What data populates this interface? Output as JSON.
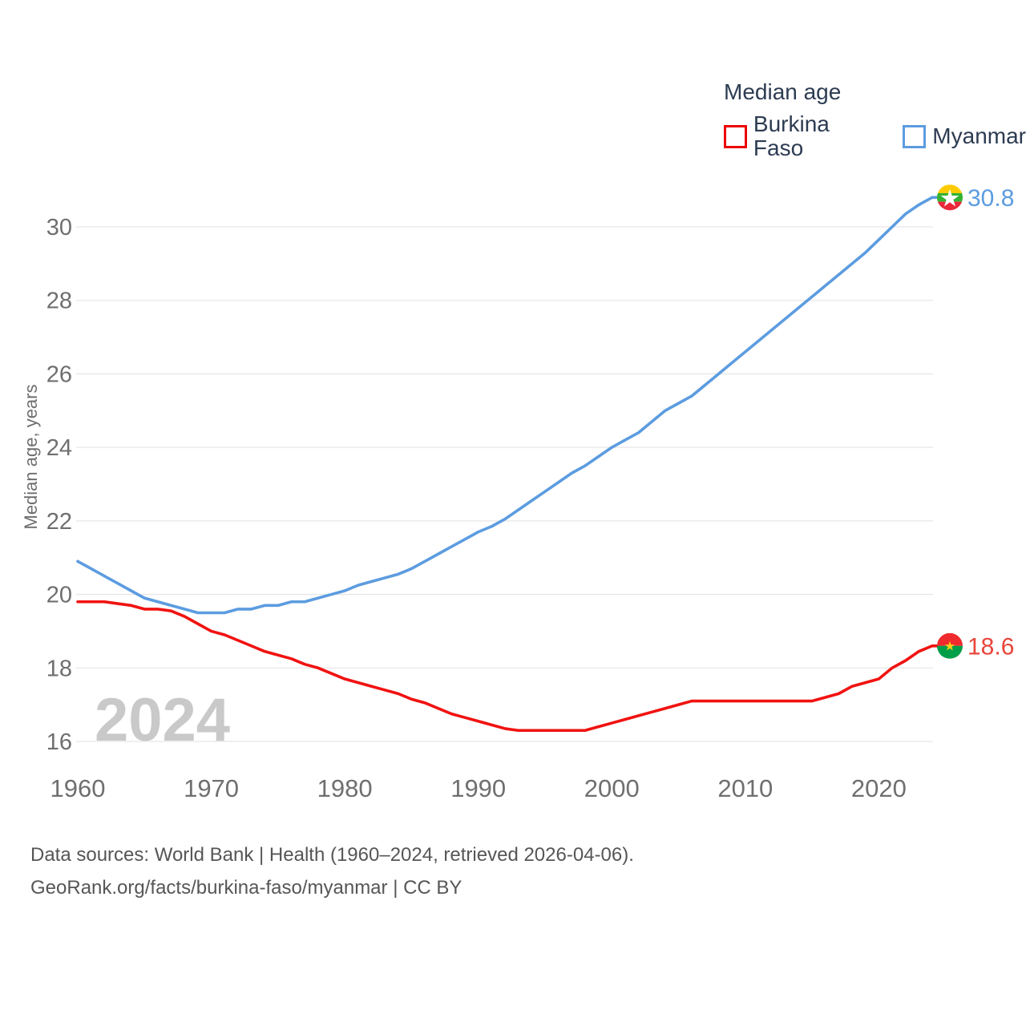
{
  "legend": {
    "title": "Median age",
    "items": [
      {
        "id": "burkina-faso",
        "label": "Burkina Faso",
        "color": "#ee0000"
      },
      {
        "id": "myanmar",
        "label": "Myanmar",
        "color": "#5c9ce0"
      }
    ]
  },
  "chart_data": {
    "type": "line",
    "title": "Median age",
    "xlabel": "",
    "ylabel": "Median age, years",
    "xlim": [
      1960,
      2024
    ],
    "ylim": [
      16,
      30
    ],
    "x_ticks": [
      1960,
      1970,
      1980,
      1990,
      2000,
      2010,
      2020
    ],
    "y_ticks": [
      16,
      18,
      20,
      22,
      24,
      26,
      28,
      30
    ],
    "grid": true,
    "legend_position": "top-right",
    "watermark": "2024",
    "x": [
      1960,
      1961,
      1962,
      1963,
      1964,
      1965,
      1966,
      1967,
      1968,
      1969,
      1970,
      1971,
      1972,
      1973,
      1974,
      1975,
      1976,
      1977,
      1978,
      1979,
      1980,
      1981,
      1982,
      1983,
      1984,
      1985,
      1986,
      1987,
      1988,
      1989,
      1990,
      1991,
      1992,
      1993,
      1994,
      1995,
      1996,
      1997,
      1998,
      1999,
      2000,
      2001,
      2002,
      2003,
      2004,
      2005,
      2006,
      2007,
      2008,
      2009,
      2010,
      2011,
      2012,
      2013,
      2014,
      2015,
      2016,
      2017,
      2018,
      2019,
      2020,
      2021,
      2022,
      2023,
      2024
    ],
    "series": [
      {
        "id": "burkina-faso",
        "name": "Burkina Faso",
        "color": "#f01311",
        "label_color": "#e8453a",
        "end_label": "18.6",
        "flag": "burkina-faso",
        "values": [
          19.8,
          19.8,
          19.8,
          19.75,
          19.7,
          19.6,
          19.6,
          19.55,
          19.4,
          19.2,
          19.0,
          18.9,
          18.75,
          18.6,
          18.45,
          18.35,
          18.25,
          18.1,
          18.0,
          17.85,
          17.7,
          17.6,
          17.5,
          17.4,
          17.3,
          17.15,
          17.05,
          16.9,
          16.75,
          16.65,
          16.55,
          16.45,
          16.35,
          16.3,
          16.3,
          16.3,
          16.3,
          16.3,
          16.3,
          16.4,
          16.5,
          16.6,
          16.7,
          16.8,
          16.9,
          17.0,
          17.1,
          17.1,
          17.1,
          17.1,
          17.1,
          17.1,
          17.1,
          17.1,
          17.1,
          17.1,
          17.2,
          17.3,
          17.5,
          17.6,
          17.7,
          18.0,
          18.2,
          18.45,
          18.6
        ]
      },
      {
        "id": "myanmar",
        "name": "Myanmar",
        "color": "#5c9ce0",
        "label_color": "#5c9ce0",
        "end_label": "30.8",
        "flag": "myanmar",
        "values": [
          20.9,
          20.7,
          20.5,
          20.3,
          20.1,
          19.9,
          19.8,
          19.7,
          19.6,
          19.5,
          19.5,
          19.5,
          19.6,
          19.6,
          19.7,
          19.7,
          19.8,
          19.8,
          19.9,
          20.0,
          20.1,
          20.25,
          20.35,
          20.45,
          20.55,
          20.7,
          20.9,
          21.1,
          21.3,
          21.5,
          21.7,
          21.85,
          22.05,
          22.3,
          22.55,
          22.8,
          23.05,
          23.3,
          23.5,
          23.75,
          24.0,
          24.2,
          24.4,
          24.7,
          25.0,
          25.2,
          25.4,
          25.7,
          26.0,
          26.3,
          26.6,
          26.9,
          27.2,
          27.5,
          27.8,
          28.1,
          28.4,
          28.7,
          29.0,
          29.3,
          29.65,
          30.0,
          30.35,
          30.6,
          30.8
        ]
      }
    ],
    "flag_colors": {
      "myanmar": {
        "yellow": "#FECB00",
        "green": "#34B233",
        "red": "#EA2839",
        "star": "#ffffff"
      },
      "burkina-faso": {
        "red": "#EF2B2D",
        "green": "#009E49",
        "star": "#FCD116"
      }
    },
    "style": {
      "grid_color": "#e7e7e7",
      "tick_color": "#6f6f6f",
      "axis_title_color": "#6e6e6e",
      "watermark_color": "#c9c9c9"
    }
  },
  "footer": {
    "line1": "Data sources: World Bank | Health (1960–2024, retrieved 2026-04-06).",
    "line2": "GeoRank.org/facts/burkina-faso/myanmar | CC BY"
  }
}
